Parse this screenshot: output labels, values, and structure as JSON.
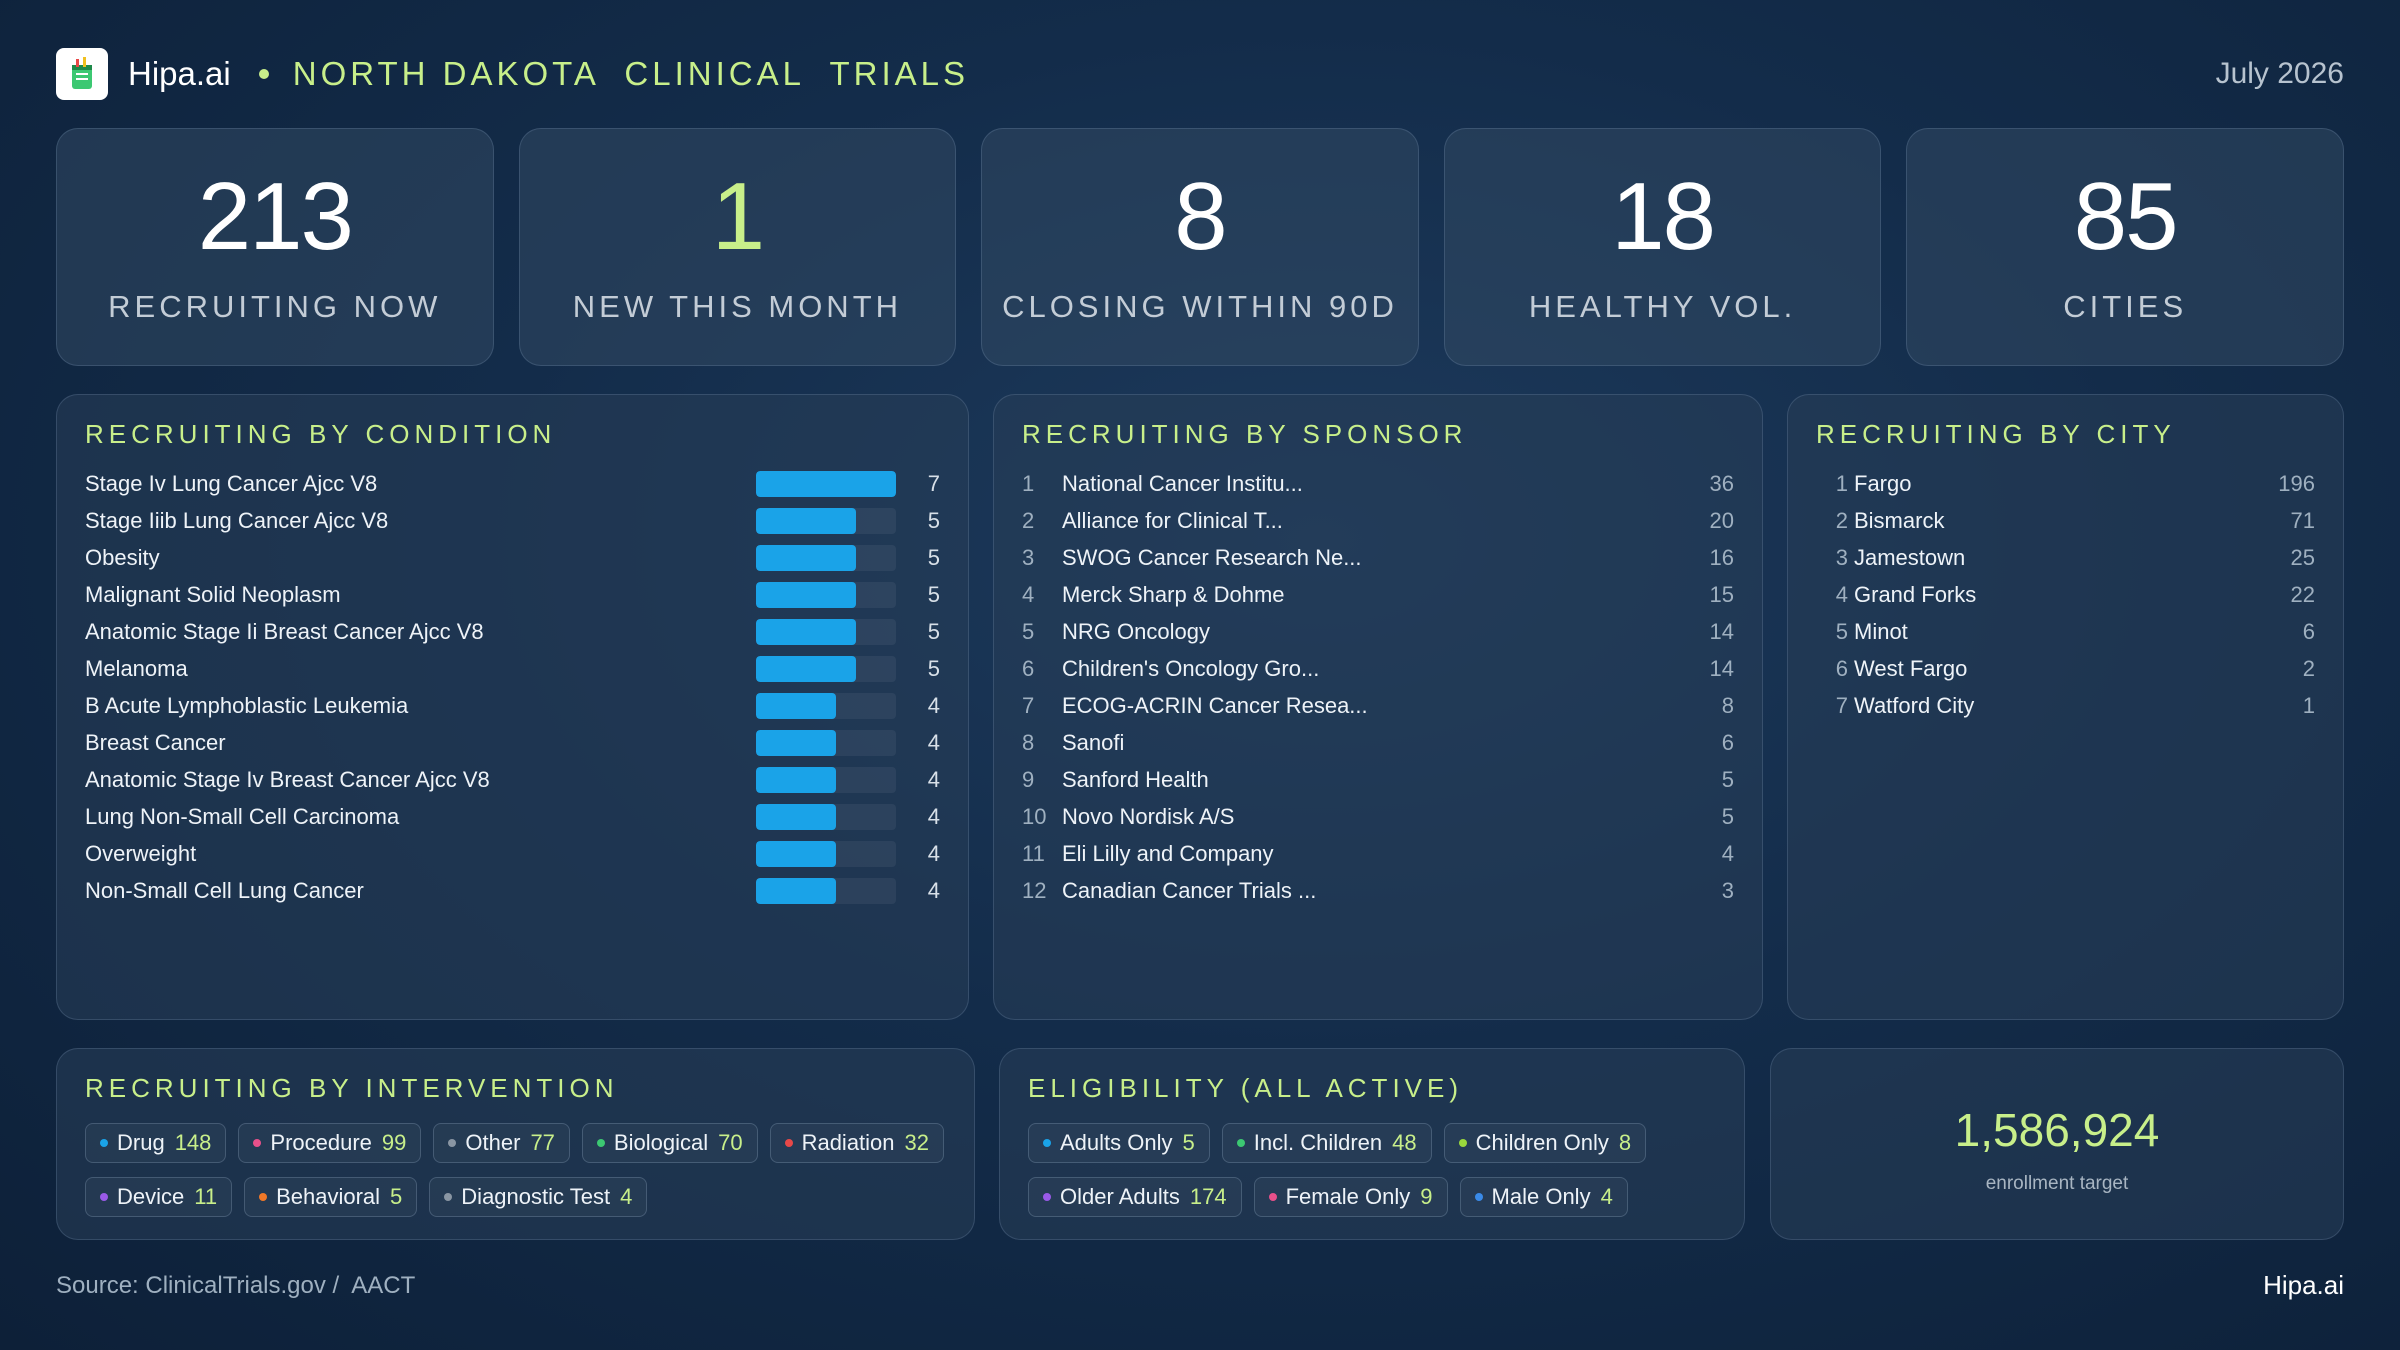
{
  "header": {
    "brand": "Hipa.ai",
    "title": "NORTH DAKOTA  CLINICAL  TRIALS",
    "date": "July 2026",
    "accent_color": "#c8ef8a"
  },
  "stats": [
    {
      "value": "213",
      "label": "RECRUITING NOW"
    },
    {
      "value": "1",
      "label": "NEW THIS MONTH"
    },
    {
      "value": "8",
      "label": "CLOSING WITHIN 90D"
    },
    {
      "value": "18",
      "label": "HEALTHY VOL."
    },
    {
      "value": "85",
      "label": "CITIES"
    }
  ],
  "condition": {
    "title": "RECRUITING BY CONDITION",
    "max": 7,
    "bar_color": "#1aa3e8",
    "items": [
      {
        "name": "Stage Iv Lung Cancer Ajcc V8",
        "value": 7
      },
      {
        "name": "Stage Iiib Lung Cancer Ajcc V8",
        "value": 5
      },
      {
        "name": "Obesity",
        "value": 5
      },
      {
        "name": "Malignant Solid Neoplasm",
        "value": 5
      },
      {
        "name": "Anatomic Stage Ii Breast Cancer Ajcc V8",
        "value": 5
      },
      {
        "name": "Melanoma",
        "value": 5
      },
      {
        "name": "B Acute Lymphoblastic Leukemia",
        "value": 4
      },
      {
        "name": "Breast Cancer",
        "value": 4
      },
      {
        "name": "Anatomic Stage Iv Breast Cancer Ajcc V8",
        "value": 4
      },
      {
        "name": "Lung Non-Small Cell Carcinoma",
        "value": 4
      },
      {
        "name": "Overweight",
        "value": 4
      },
      {
        "name": "Non-Small Cell Lung Cancer",
        "value": 4
      }
    ]
  },
  "sponsor": {
    "title": "RECRUITING BY SPONSOR",
    "items": [
      {
        "rank": "1",
        "name": "National Cancer Institu...",
        "value": "36"
      },
      {
        "rank": "2",
        "name": "Alliance for Clinical T...",
        "value": "20"
      },
      {
        "rank": "3",
        "name": "SWOG Cancer Research Ne...",
        "value": "16"
      },
      {
        "rank": "4",
        "name": "Merck Sharp & Dohme",
        "value": "15"
      },
      {
        "rank": "5",
        "name": "NRG Oncology",
        "value": "14"
      },
      {
        "rank": "6",
        "name": "Children's Oncology Gro...",
        "value": "14"
      },
      {
        "rank": "7",
        "name": "ECOG-ACRIN Cancer Resea...",
        "value": "8"
      },
      {
        "rank": "8",
        "name": "Sanofi",
        "value": "6"
      },
      {
        "rank": "9",
        "name": "Sanford Health",
        "value": "5"
      },
      {
        "rank": "10",
        "name": "Novo Nordisk A/S",
        "value": "5"
      },
      {
        "rank": "11",
        "name": "Eli Lilly and Company",
        "value": "4"
      },
      {
        "rank": "12",
        "name": "Canadian Cancer Trials ...",
        "value": "3"
      }
    ]
  },
  "city": {
    "title": "RECRUITING BY CITY",
    "items": [
      {
        "rank": "1",
        "name": "Fargo",
        "value": "196"
      },
      {
        "rank": "2",
        "name": "Bismarck",
        "value": "71"
      },
      {
        "rank": "3",
        "name": "Jamestown",
        "value": "25"
      },
      {
        "rank": "4",
        "name": "Grand Forks",
        "value": "22"
      },
      {
        "rank": "5",
        "name": "Minot",
        "value": "6"
      },
      {
        "rank": "6",
        "name": "West Fargo",
        "value": "2"
      },
      {
        "rank": "7",
        "name": "Watford City",
        "value": "1"
      }
    ]
  },
  "intervention": {
    "title": "RECRUITING BY INTERVENTION",
    "items": [
      {
        "label": "Drug",
        "count": "148",
        "color": "#1aa3e8"
      },
      {
        "label": "Procedure",
        "count": "99",
        "color": "#e8508a"
      },
      {
        "label": "Other",
        "count": "77",
        "color": "#8a96a3"
      },
      {
        "label": "Biological",
        "count": "70",
        "color": "#3cc872"
      },
      {
        "label": "Radiation",
        "count": "32",
        "color": "#e84848"
      },
      {
        "label": "Device",
        "count": "11",
        "color": "#9a5ae8"
      },
      {
        "label": "Behavioral",
        "count": "5",
        "color": "#f07828"
      },
      {
        "label": "Diagnostic Test",
        "count": "4",
        "color": "#8a96a3"
      }
    ]
  },
  "eligibility": {
    "title": "ELIGIBILITY (ALL ACTIVE)",
    "items": [
      {
        "label": "Adults Only",
        "count": "5",
        "color": "#1aa3e8"
      },
      {
        "label": "Incl. Children",
        "count": "48",
        "color": "#3cc872"
      },
      {
        "label": "Children Only",
        "count": "8",
        "color": "#9ad83c"
      },
      {
        "label": "Older Adults",
        "count": "174",
        "color": "#9a5ae8"
      },
      {
        "label": "Female Only",
        "count": "9",
        "color": "#e8508a"
      },
      {
        "label": "Male Only",
        "count": "4",
        "color": "#3a8ae8"
      }
    ]
  },
  "enrollment": {
    "value": "1,586,924",
    "label": "enrollment target"
  },
  "footer": {
    "source": "Source: ClinicalTrials.gov /  AACT",
    "brand": "Hipa.ai"
  }
}
